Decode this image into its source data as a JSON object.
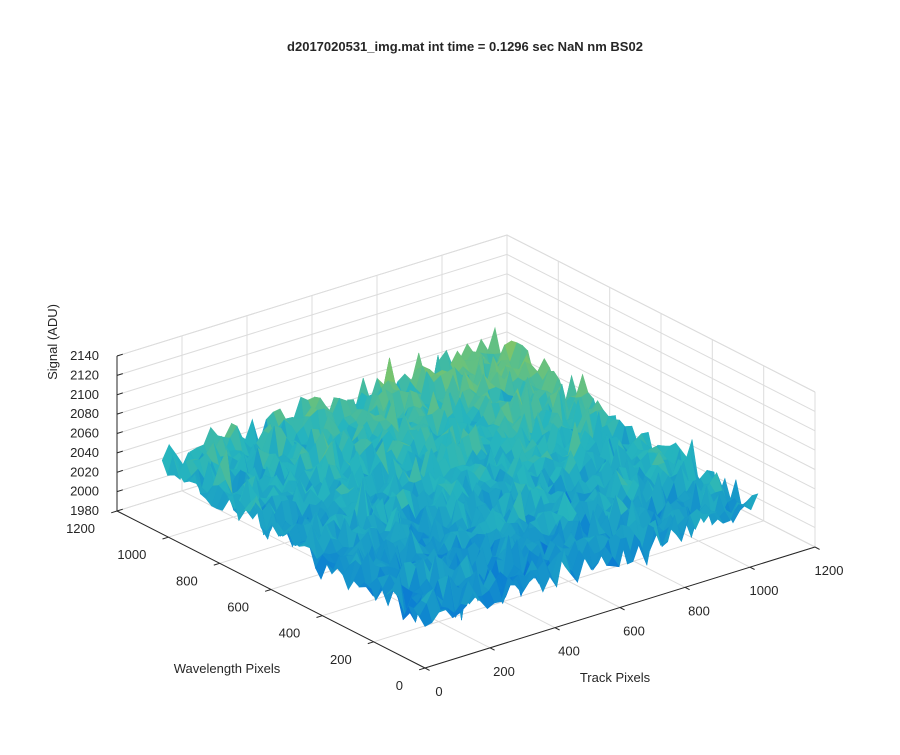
{
  "chart_data": {
    "type": "surface",
    "title": "d2017020531_img.mat int time = 0.1296 sec  NaN nm BS02",
    "xlabel": "Track Pixels",
    "ylabel": "Wavelength Pixels",
    "zlabel": "Signal (ADU)",
    "xlim": [
      0,
      1200
    ],
    "ylim": [
      0,
      1200
    ],
    "zlim": [
      1980,
      2140
    ],
    "x_ticks": [
      0,
      200,
      400,
      600,
      800,
      1000,
      1200
    ],
    "y_ticks": [
      0,
      200,
      400,
      600,
      800,
      1000,
      1200
    ],
    "z_ticks": [
      1980,
      2000,
      2020,
      2040,
      2060,
      2080,
      2100,
      2120,
      2140
    ],
    "data_extent": {
      "x": [
        0,
        1024
      ],
      "y": [
        0,
        1024
      ]
    },
    "signal_summary": {
      "baseline": 2040,
      "noise_range": [
        2000,
        2120
      ],
      "rises_toward_far_corner": true
    },
    "grid": true,
    "colormap": "parula",
    "colors": {
      "low": "#0072BD",
      "mid": "#36B99D",
      "high": "#EDBD2E",
      "axis": "#262626",
      "grid": "#dcdcdc"
    }
  }
}
